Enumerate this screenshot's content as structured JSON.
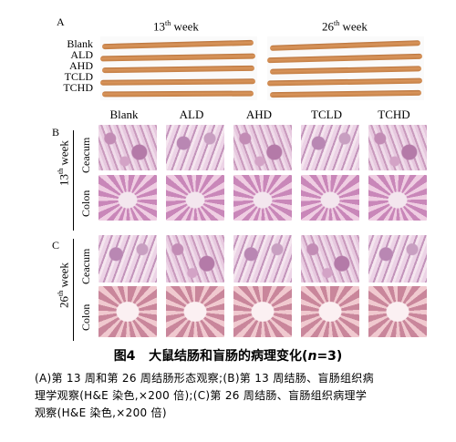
{
  "panel_a": {
    "letter": "A",
    "week13_num": "13",
    "week13_sup": "th",
    "week13_word": "week",
    "week26_num": "26",
    "week26_sup": "th",
    "week26_word": "week",
    "groups": [
      "Blank",
      "ALD",
      "AHD",
      "TCLD",
      "TCHD"
    ]
  },
  "panel_b": {
    "letter": "B",
    "week_num": "13",
    "week_sup": "th",
    "week_word": "week",
    "columns": [
      "Blank",
      "ALD",
      "AHD",
      "TCLD",
      "TCHD"
    ],
    "rows": [
      "Ceacum",
      "Colon"
    ]
  },
  "panel_c": {
    "letter": "C",
    "week_num": "26",
    "week_sup": "th",
    "week_word": "week",
    "rows": [
      "Ceacum",
      "Colon"
    ]
  },
  "figure": {
    "title_prefix": "图4",
    "title_main": "大鼠结肠和盲肠的病理变化(",
    "title_n": "n",
    "title_suffix": "=3)",
    "caption_line1": "(A)第 13 周和第 26 周结肠形态观察;(B)第 13 周结肠、盲肠组织病",
    "caption_line2": "理学观察(H&E 染色,×200 倍);(C)第 26 周结肠、盲肠组织病理学",
    "caption_line3": "观察(H&E 染色,×200 倍)"
  }
}
